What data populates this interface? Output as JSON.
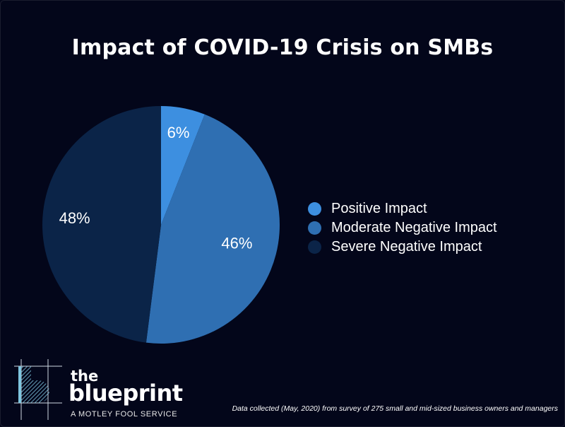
{
  "chart_data": {
    "type": "pie",
    "title": "Impact of COVID-19 Crisis on SMBs",
    "slices": [
      {
        "label": "Positive Impact",
        "value": 6,
        "display": "6%",
        "color": "#3d8fe0"
      },
      {
        "label": "Moderate Negative Impact",
        "value": 46,
        "display": "46%",
        "color": "#2f6fb2"
      },
      {
        "label": "Severe Negative Impact",
        "value": 48,
        "display": "48%",
        "color": "#0b2448"
      }
    ],
    "legend_position": "right"
  },
  "logo": {
    "word_the": "the",
    "word_blueprint": "blueprint",
    "tagline": "A MOTLEY FOOL SERVICE"
  },
  "footnote": "Data collected (May, 2020) from survey of 275 small and mid-sized business owners and managers"
}
